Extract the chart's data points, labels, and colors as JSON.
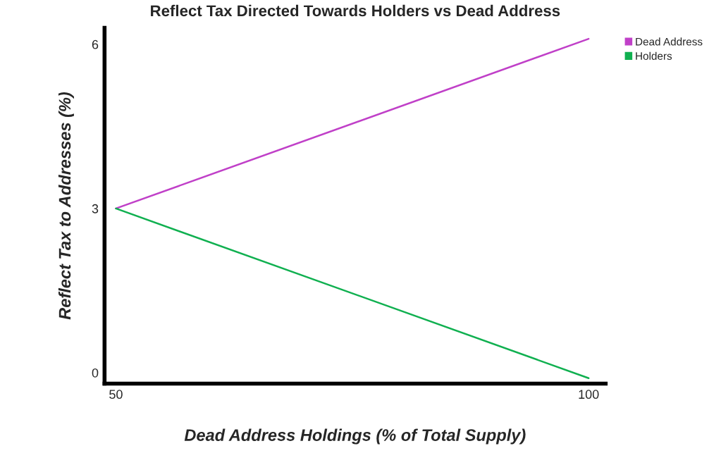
{
  "chart_data": {
    "type": "line",
    "title": "Reflect Tax Directed Towards Holders vs Dead Address",
    "xlabel": "Dead Address Holdings (% of Total Supply)",
    "ylabel": "Reflect Tax to Addresses (%)",
    "x": [
      50,
      100
    ],
    "series": [
      {
        "name": "Dead Address",
        "color": "#c040c8",
        "values": [
          3,
          6.1
        ]
      },
      {
        "name": "Holders",
        "color": "#10b050",
        "values": [
          3,
          -0.1
        ]
      }
    ],
    "xlim": [
      48.8,
      101.8
    ],
    "xticks": [
      50,
      100
    ],
    "ylim": [
      -0.2,
      6.3
    ],
    "yticks": [
      0,
      3,
      6
    ],
    "grid": false,
    "legend": "top right",
    "marker": "none",
    "line_style": "solid"
  }
}
